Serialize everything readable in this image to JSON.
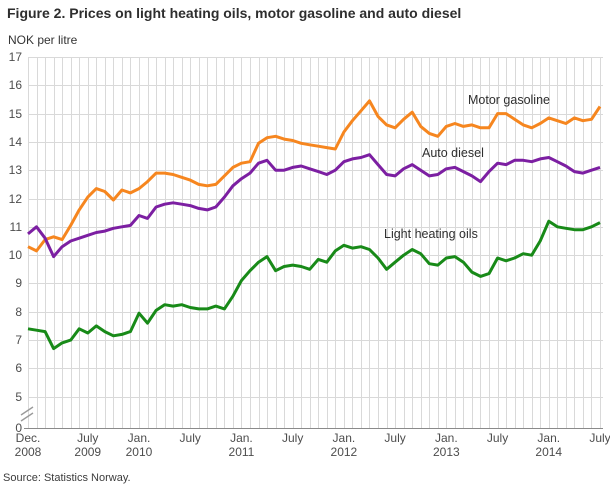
{
  "header": {
    "title": "Figure 2. Prices on light heating oils, motor gasoline and auto diesel",
    "units_label": "NOK per litre"
  },
  "footer": {
    "source": "Source: Statistics Norway."
  },
  "colors": {
    "motor_gasoline": "#f6861f",
    "auto_diesel": "#7c1fa2",
    "light_heating_oils": "#188a18",
    "grid": "#d9d9d9",
    "axis": "#8a8a8a",
    "title_text": "#2e2e2e",
    "tick_text": "#4d4d4d"
  },
  "chart_data": {
    "type": "line",
    "title": "Figure 2. Prices on light heating oils, motor gasoline and auto diesel",
    "ylabel": "NOK per litre",
    "xlabel": "",
    "ylim": [
      0,
      17
    ],
    "visible_y_range": [
      5,
      17
    ],
    "axis_break_between": [
      0,
      5
    ],
    "grid": true,
    "legend_position": "inline-labels",
    "y_ticks": [
      17,
      16,
      15,
      14,
      13,
      12,
      11,
      10,
      9,
      8,
      7,
      6,
      5,
      0
    ],
    "x_ticks": [
      {
        "index": 0,
        "month": "Dec.",
        "year": "2008"
      },
      {
        "index": 7,
        "month": "July",
        "year": "2009"
      },
      {
        "index": 13,
        "month": "Jan.",
        "year": "2010"
      },
      {
        "index": 19,
        "month": "July",
        "year": ""
      },
      {
        "index": 25,
        "month": "Jan.",
        "year": "2011"
      },
      {
        "index": 31,
        "month": "July",
        "year": ""
      },
      {
        "index": 37,
        "month": "Jan.",
        "year": "2012"
      },
      {
        "index": 43,
        "month": "July",
        "year": ""
      },
      {
        "index": 49,
        "month": "Jan.",
        "year": "2013"
      },
      {
        "index": 55,
        "month": "July",
        "year": ""
      },
      {
        "index": 61,
        "month": "Jan.",
        "year": "2014"
      },
      {
        "index": 67,
        "month": "July",
        "year": ""
      }
    ],
    "x_labels": [
      "Dec 2008",
      "Jan 2009",
      "Feb 2009",
      "Mar 2009",
      "Apr 2009",
      "May 2009",
      "Jun 2009",
      "Jul 2009",
      "Aug 2009",
      "Sep 2009",
      "Oct 2009",
      "Nov 2009",
      "Dec 2009",
      "Jan 2010",
      "Feb 2010",
      "Mar 2010",
      "Apr 2010",
      "May 2010",
      "Jun 2010",
      "Jul 2010",
      "Aug 2010",
      "Sep 2010",
      "Oct 2010",
      "Nov 2010",
      "Dec 2010",
      "Jan 2011",
      "Feb 2011",
      "Mar 2011",
      "Apr 2011",
      "May 2011",
      "Jun 2011",
      "Jul 2011",
      "Aug 2011",
      "Sep 2011",
      "Oct 2011",
      "Nov 2011",
      "Dec 2011",
      "Jan 2012",
      "Feb 2012",
      "Mar 2012",
      "Apr 2012",
      "May 2012",
      "Jun 2012",
      "Jul 2012",
      "Aug 2012",
      "Sep 2012",
      "Oct 2012",
      "Nov 2012",
      "Dec 2012",
      "Jan 2013",
      "Feb 2013",
      "Mar 2013",
      "Apr 2013",
      "May 2013",
      "Jun 2013",
      "Jul 2013",
      "Aug 2013",
      "Sep 2013",
      "Oct 2013",
      "Nov 2013",
      "Dec 2013",
      "Jan 2014",
      "Feb 2014",
      "Mar 2014",
      "Apr 2014",
      "May 2014",
      "Jun 2014",
      "Jul 2014"
    ],
    "series": [
      {
        "name": "Motor gasoline",
        "color": "#f6861f",
        "values": [
          10.3,
          10.15,
          10.55,
          10.65,
          10.55,
          11.05,
          11.6,
          12.05,
          12.35,
          12.25,
          11.95,
          12.3,
          12.2,
          12.35,
          12.6,
          12.9,
          12.9,
          12.85,
          12.75,
          12.65,
          12.5,
          12.45,
          12.5,
          12.8,
          13.1,
          13.25,
          13.3,
          13.95,
          14.15,
          14.2,
          14.1,
          14.05,
          13.95,
          13.9,
          13.85,
          13.8,
          13.75,
          14.35,
          14.75,
          15.1,
          15.45,
          14.9,
          14.6,
          14.5,
          14.8,
          15.05,
          14.55,
          14.3,
          14.2,
          14.55,
          14.65,
          14.55,
          14.6,
          14.5,
          14.5,
          15.0,
          15.0,
          14.8,
          14.6,
          14.5,
          14.65,
          14.85,
          14.75,
          14.65,
          14.85,
          14.75,
          14.8,
          15.25
        ]
      },
      {
        "name": "Auto diesel",
        "color": "#7c1fa2",
        "values": [
          10.75,
          11.0,
          10.6,
          9.95,
          10.3,
          10.5,
          10.6,
          10.7,
          10.8,
          10.85,
          10.95,
          11.0,
          11.05,
          11.4,
          11.3,
          11.7,
          11.8,
          11.85,
          11.8,
          11.75,
          11.65,
          11.6,
          11.7,
          12.05,
          12.45,
          12.7,
          12.9,
          13.25,
          13.35,
          13.0,
          13.0,
          13.1,
          13.15,
          13.05,
          12.95,
          12.85,
          13.0,
          13.3,
          13.4,
          13.45,
          13.55,
          13.2,
          12.85,
          12.8,
          13.05,
          13.2,
          13.0,
          12.8,
          12.85,
          13.05,
          13.1,
          12.95,
          12.8,
          12.6,
          12.95,
          13.25,
          13.2,
          13.35,
          13.35,
          13.3,
          13.4,
          13.45,
          13.3,
          13.15,
          12.95,
          12.9,
          13.0,
          13.1
        ]
      },
      {
        "name": "Light heating oils",
        "color": "#188a18",
        "values": [
          7.4,
          7.35,
          7.3,
          6.7,
          6.9,
          7.0,
          7.4,
          7.25,
          7.5,
          7.3,
          7.15,
          7.2,
          7.3,
          7.95,
          7.6,
          8.05,
          8.25,
          8.2,
          8.25,
          8.15,
          8.1,
          8.1,
          8.2,
          8.1,
          8.55,
          9.1,
          9.45,
          9.75,
          9.95,
          9.45,
          9.6,
          9.65,
          9.6,
          9.5,
          9.85,
          9.75,
          10.15,
          10.35,
          10.25,
          10.3,
          10.2,
          9.9,
          9.5,
          9.75,
          10.0,
          10.2,
          10.05,
          9.7,
          9.65,
          9.9,
          9.95,
          9.75,
          9.4,
          9.25,
          9.35,
          9.9,
          9.8,
          9.9,
          10.05,
          10.0,
          10.5,
          11.2,
          11.0,
          10.95,
          10.9,
          10.9,
          11.0,
          11.15
        ]
      }
    ]
  }
}
